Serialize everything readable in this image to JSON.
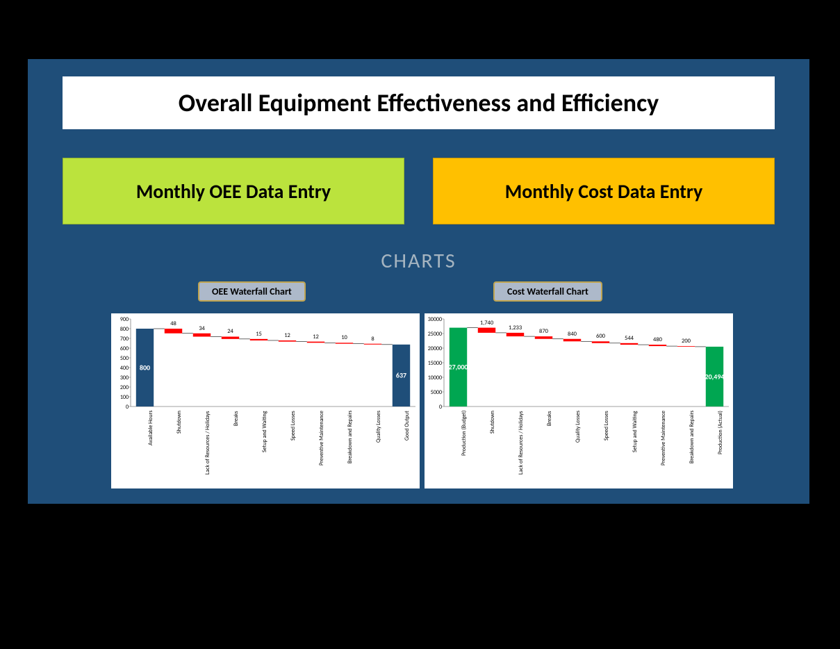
{
  "title": "Overall Equipment Effectiveness and Efficiency",
  "buttons": {
    "oee": {
      "label": "Monthly OEE Data Entry",
      "bg": "#bbe33d"
    },
    "cost": {
      "label": "Monthly Cost Data Entry",
      "bg": "#ffc000"
    }
  },
  "charts_heading": "CHARTS",
  "chart_labels": {
    "oee": "OEE Waterfall Chart",
    "cost": "Cost Waterfall Chart"
  },
  "oee_chart": {
    "type": "waterfall",
    "ylim": [
      0,
      900
    ],
    "ytick_step": 100,
    "yticks": [
      0,
      100,
      200,
      300,
      400,
      500,
      600,
      700,
      800,
      900
    ],
    "bar_color_endpoint": "#1f4e79",
    "bar_color_delta": "#ff0000",
    "axis_color": "#808080",
    "background_color": "#ffffff",
    "label_fontsize": 8,
    "data": [
      {
        "label": "Available Hours",
        "value": 800,
        "type": "start",
        "display": "800"
      },
      {
        "label": "Shutdown",
        "value": 48,
        "type": "down",
        "display": "48"
      },
      {
        "label": "Lack of Resources / Holidays",
        "value": 34,
        "type": "down",
        "display": "34"
      },
      {
        "label": "Breaks",
        "value": 24,
        "type": "down",
        "display": "24"
      },
      {
        "label": "Setup and Waiting",
        "value": 15,
        "type": "down",
        "display": "15"
      },
      {
        "label": "Speed Losses",
        "value": 12,
        "type": "down",
        "display": "12"
      },
      {
        "label": "Preventive Maintenance",
        "value": 12,
        "type": "down",
        "display": "12"
      },
      {
        "label": "Breakdown and Repairs",
        "value": 10,
        "type": "down",
        "display": "10"
      },
      {
        "label": "Quality Losses",
        "value": 8,
        "type": "down",
        "display": "8"
      },
      {
        "label": "Good Output",
        "value": 637,
        "type": "end",
        "display": "637"
      }
    ]
  },
  "cost_chart": {
    "type": "waterfall",
    "ylim": [
      0,
      30000
    ],
    "ytick_step": 5000,
    "yticks": [
      0,
      5000,
      10000,
      15000,
      20000,
      25000,
      30000
    ],
    "bar_color_endpoint": "#00a651",
    "bar_color_delta": "#ff0000",
    "axis_color": "#808080",
    "background_color": "#ffffff",
    "label_fontsize": 8,
    "data": [
      {
        "label": "Production (Budget)",
        "value": 27000,
        "type": "start",
        "display": "27,000"
      },
      {
        "label": "Shutdown",
        "value": 1740,
        "type": "down",
        "display": "1,740"
      },
      {
        "label": "Lack of Resources / Holidays",
        "value": 1233,
        "type": "down",
        "display": "1,233"
      },
      {
        "label": "Breaks",
        "value": 870,
        "type": "down",
        "display": "870"
      },
      {
        "label": "Quality Losses",
        "value": 840,
        "type": "down",
        "display": "840"
      },
      {
        "label": "Speed Losses",
        "value": 600,
        "type": "down",
        "display": "600"
      },
      {
        "label": "Setup and Waiting",
        "value": 544,
        "type": "down",
        "display": "544"
      },
      {
        "label": "Preventive Maintenance",
        "value": 480,
        "type": "down",
        "display": "480"
      },
      {
        "label": "Breakdown and Repairs",
        "value": 200,
        "type": "down",
        "display": "200"
      },
      {
        "label": "Production (Actual)",
        "value": 20494,
        "type": "end",
        "display": "20,494"
      }
    ]
  },
  "panel_bg": "#1f4e79",
  "page_bg": "#000000"
}
